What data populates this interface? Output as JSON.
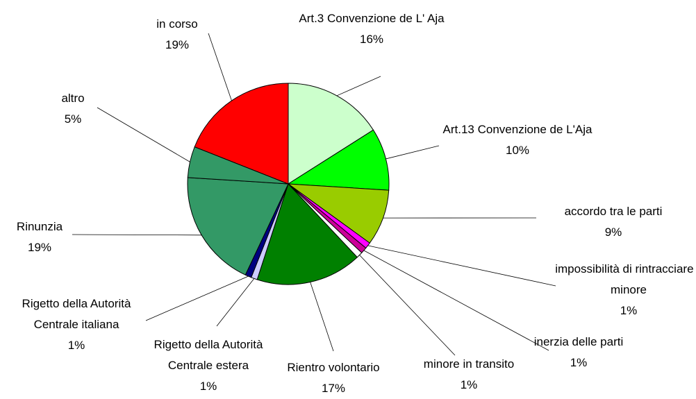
{
  "chart_data": {
    "type": "pie",
    "categories": [
      "Art.3 Convenzione de L' Aja",
      "Art.13 Convenzione de L'Aja",
      "accordo tra le parti",
      "impossibilità di rintracciare il minore",
      "inerzia delle parti",
      "minore in transito",
      "Rientro volontario",
      "Rigetto della Autorità Centrale estera",
      "Rigetto della Autorità Centrale italiana",
      "Rinunzia",
      "altro",
      "in corso"
    ],
    "values": [
      16,
      10,
      9,
      1,
      1,
      1,
      17,
      1,
      1,
      19,
      5,
      19
    ],
    "value_labels": [
      "16%",
      "10%",
      "9%",
      "1%",
      "1%",
      "1%",
      "17%",
      "1%",
      "1%",
      "19%",
      "5%",
      "19%"
    ],
    "colors": [
      "#ccffcc",
      "#00ff00",
      "#99cc00",
      "#ff00ff",
      "#cc0099",
      "#ffffff",
      "#008000",
      "#ccccff",
      "#000080",
      "#339966",
      "#339966",
      "#ff0000"
    ]
  }
}
